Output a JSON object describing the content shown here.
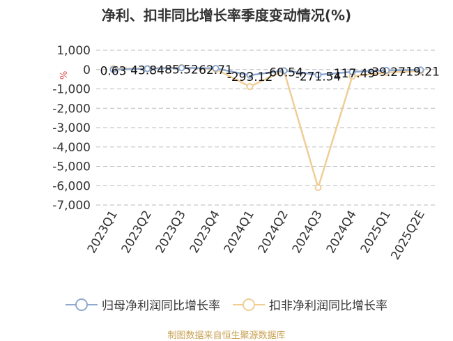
{
  "header": {
    "title": "净利、扣非同比增长率季度变动情况(%)"
  },
  "footer": {
    "source": "制图数据来自恒生聚源数据库"
  },
  "colors": {
    "series_1": "#8fa9d0",
    "series_2": "#f0cd95",
    "grid": "#bbbbbb",
    "axis_text": "#333333",
    "ylabel": "#e05050"
  },
  "chart_data": {
    "type": "line",
    "title": "净利、扣非同比增长率季度变动情况(%)",
    "xlabel": "",
    "ylabel": "%",
    "categories": [
      "2023Q1",
      "2023Q2",
      "2023Q3",
      "2023Q4",
      "2024Q1",
      "2024Q2",
      "2024Q3",
      "2024Q4",
      "2025Q1",
      "2025Q2E"
    ],
    "ylim": [
      -7000,
      1000
    ],
    "yticks": [
      1000,
      0,
      -1000,
      -2000,
      -3000,
      -4000,
      -5000,
      -6000,
      -7000
    ],
    "ytick_labels": [
      "1,000",
      "0",
      "-1,000",
      "-2,000",
      "-3,000",
      "-4,000",
      "-5,000",
      "-6,000",
      "-7,000"
    ],
    "grid": true,
    "legend_position": "bottom",
    "series": [
      {
        "name": "归母净利润同比增长率",
        "values": [
          0.63,
          43.84,
          85.52,
          62.71,
          -293.12,
          -60.54,
          -271.54,
          -117.49,
          -39.27,
          -19.21
        ],
        "labels": [
          "0.63",
          "43.84",
          "85.52",
          "62.71",
          "-293.12",
          "-60.54",
          "-271.54",
          "-117.49",
          "-39.27",
          "-19.21"
        ]
      },
      {
        "name": "扣非净利润同比增长率",
        "values": [
          50,
          60,
          110,
          20,
          -880,
          -60,
          -6100,
          -350,
          -150,
          -80
        ]
      }
    ]
  }
}
